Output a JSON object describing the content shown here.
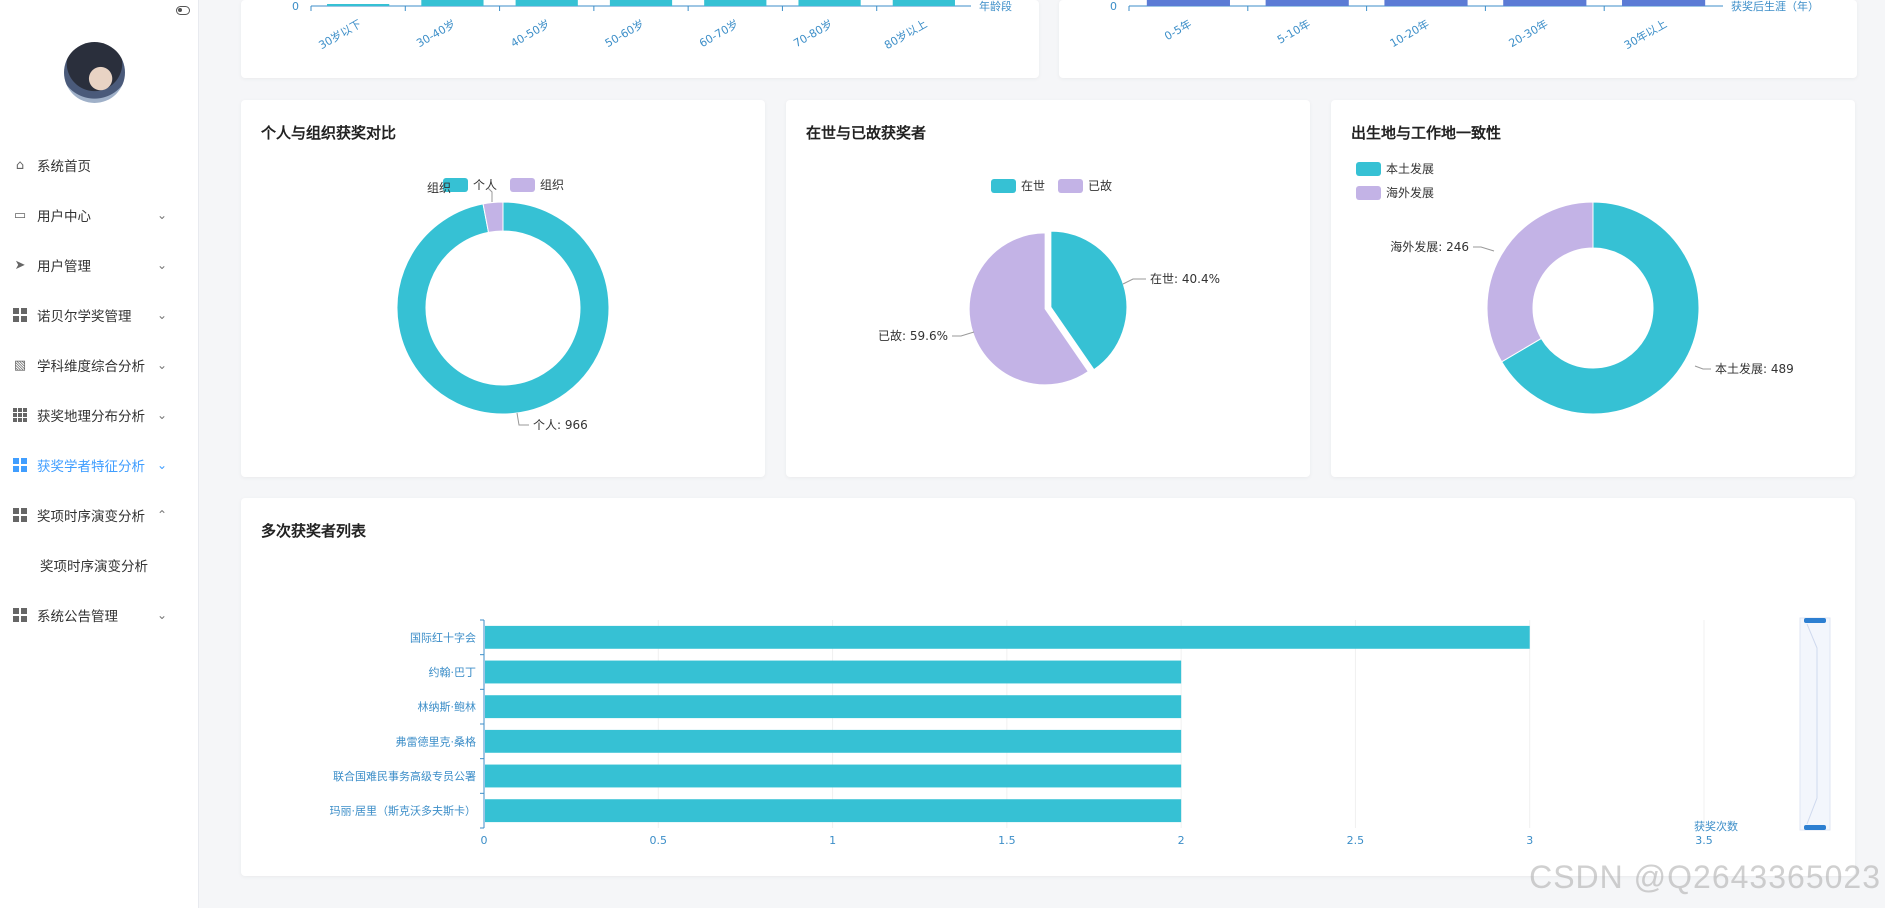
{
  "sidebar": {
    "menu": [
      {
        "label": "系统首页",
        "icon": "home-icon",
        "chevron": ""
      },
      {
        "label": "用户中心",
        "icon": "id-card-icon",
        "chevron": "down"
      },
      {
        "label": "用户管理",
        "icon": "send-icon",
        "chevron": "down"
      },
      {
        "label": "诺贝尔学奖管理",
        "icon": "grid-icon",
        "chevron": "down"
      },
      {
        "label": "学科维度综合分析",
        "icon": "document-icon",
        "chevron": "down"
      },
      {
        "label": "获奖地理分布分析",
        "icon": "grid-nine-icon",
        "chevron": "down"
      },
      {
        "label": "获奖学者特征分析",
        "icon": "grid-icon",
        "chevron": "down",
        "active": true
      },
      {
        "label": "奖项时序演变分析",
        "icon": "grid-icon",
        "chevron": "up"
      },
      {
        "label": "奖项时序演变分析",
        "sub": true
      },
      {
        "label": "系统公告管理",
        "icon": "grid-icon",
        "chevron": "down"
      }
    ],
    "accent_color": "#409eff"
  },
  "colors": {
    "teal": "#36c1d4",
    "lavender": "#c3b3e6",
    "blue": "#5b7bd5",
    "axis": "#3c8ec8"
  },
  "top_left_chart": {
    "y_tick": "0",
    "x_axis_name": "年龄段",
    "categories": [
      "30岁以下",
      "30-40岁",
      "40-50岁",
      "50-60岁",
      "60-70岁",
      "70-80岁",
      "80岁以上"
    ]
  },
  "top_right_chart": {
    "y_tick": "0",
    "x_axis_name": "获奖后生涯（年）",
    "categories": [
      "0-5年",
      "5-10年",
      "10-20年",
      "20-30年",
      "30年以上"
    ]
  },
  "cards": {
    "pie1_title": "个人与组织获奖对比",
    "pie2_title": "在世与已故获奖者",
    "pie3_title": "出生地与工作地一致性",
    "bar_title": "多次获奖者列表"
  },
  "chart_data": [
    {
      "type": "pie",
      "title": "个人与组织获奖对比",
      "legend": [
        "个人",
        "组织"
      ],
      "slices": [
        {
          "name": "个人",
          "value": 966
        },
        {
          "name": "组织",
          "value": 30
        }
      ],
      "labels": [
        "个人: 966",
        "组织"
      ]
    },
    {
      "type": "pie",
      "title": "在世与已故获奖者",
      "legend": [
        "在世",
        "已故"
      ],
      "slices": [
        {
          "name": "在世",
          "value": 40.4
        },
        {
          "name": "已故",
          "value": 59.6
        }
      ],
      "labels": [
        "在世: 40.4%",
        "已故: 59.6%"
      ]
    },
    {
      "type": "pie",
      "title": "出生地与工作地一致性",
      "legend": [
        "本土发展",
        "海外发展"
      ],
      "slices": [
        {
          "name": "本土发展",
          "value": 489
        },
        {
          "name": "海外发展",
          "value": 246
        }
      ],
      "labels": [
        "本土发展: 489",
        "海外发展: 246"
      ]
    },
    {
      "type": "bar",
      "orientation": "horizontal",
      "title": "多次获奖者列表",
      "categories": [
        "国际红十字会",
        "约翰·巴丁",
        "林纳斯·鲍林",
        "弗雷德里克·桑格",
        "联合国难民事务高级专员公署",
        "玛丽·居里（斯克沃多夫斯卡）"
      ],
      "values": [
        3,
        2,
        2,
        2,
        2,
        2
      ],
      "xlabel": "获奖次数",
      "xlim": [
        0,
        3.5
      ],
      "x_ticks": [
        "0",
        "0.5",
        "1",
        "1.5",
        "2",
        "2.5",
        "3",
        "3.5"
      ]
    }
  ],
  "watermark": "CSDN @Q2643365023"
}
